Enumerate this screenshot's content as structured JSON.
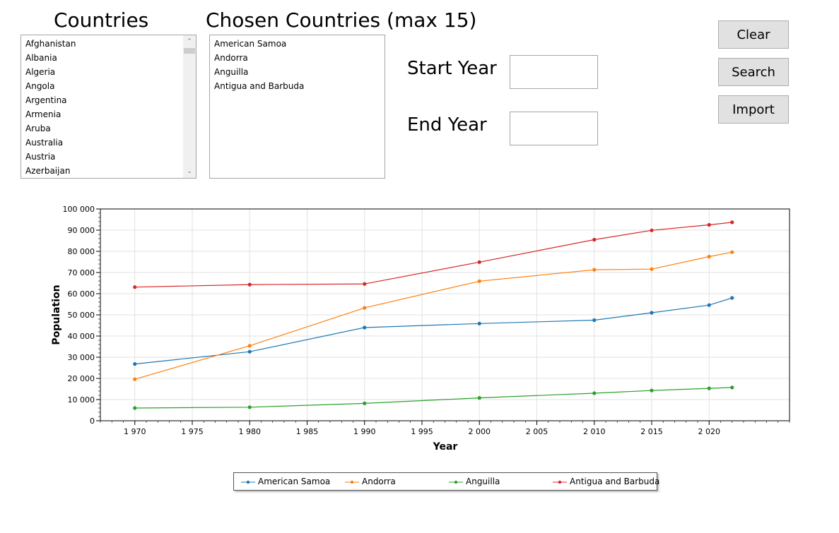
{
  "countries_panel": {
    "title": "Countries",
    "items": [
      "Afghanistan",
      "Albania",
      "Algeria",
      "Angola",
      "Argentina",
      "Armenia",
      "Aruba",
      "Australia",
      "Austria",
      "Azerbaijan"
    ],
    "scroll_up_icon": "chevron-up-icon",
    "scroll_down_icon": "chevron-down-icon"
  },
  "chosen_panel": {
    "title": "Chosen Countries (max 15)",
    "items": [
      "American Samoa",
      "Andorra",
      "Anguilla",
      "Antigua and Barbuda"
    ]
  },
  "years": {
    "start_label": "Start Year",
    "start_value": "",
    "end_label": "End Year",
    "end_value": ""
  },
  "buttons": {
    "clear": "Clear",
    "search": "Search",
    "import": "Import"
  },
  "chart_data": {
    "type": "line",
    "title": "",
    "xlabel": "Year",
    "ylabel": "Population",
    "xlim": [
      1967,
      2027
    ],
    "ylim": [
      0,
      100000
    ],
    "x_ticks": [
      1970,
      1975,
      1980,
      1985,
      1990,
      1995,
      2000,
      2005,
      2010,
      2015,
      2020
    ],
    "x_tick_labels": [
      "1 970",
      "1 975",
      "1 980",
      "1 985",
      "1 990",
      "1 995",
      "2 000",
      "2 005",
      "2 010",
      "2 015",
      "2 020"
    ],
    "y_ticks": [
      0,
      10000,
      20000,
      30000,
      40000,
      50000,
      60000,
      70000,
      80000,
      90000,
      100000
    ],
    "y_tick_labels": [
      "0",
      "10 000",
      "20 000",
      "30 000",
      "40 000",
      "50 000",
      "60 000",
      "70 000",
      "80 000",
      "90 000",
      "100 000"
    ],
    "grid": true,
    "legend_position": "bottom",
    "x": [
      1970,
      1980,
      1990,
      2000,
      2010,
      2015,
      2020,
      2022
    ],
    "series": [
      {
        "name": "American Samoa",
        "color": "#1f77b4",
        "values": [
          26800,
          32600,
          44000,
          45900,
          47500,
          51000,
          54600,
          58000
        ]
      },
      {
        "name": "Andorra",
        "color": "#ff7f0e",
        "values": [
          19600,
          35400,
          53300,
          65900,
          71300,
          71600,
          77500,
          79600
        ]
      },
      {
        "name": "Anguilla",
        "color": "#2ca02c",
        "values": [
          6000,
          6400,
          8200,
          10800,
          13000,
          14300,
          15300,
          15700
        ]
      },
      {
        "name": "Antigua and Barbuda",
        "color": "#d62728",
        "values": [
          63100,
          64300,
          64600,
          74900,
          85500,
          89900,
          92500,
          93700
        ]
      }
    ]
  }
}
